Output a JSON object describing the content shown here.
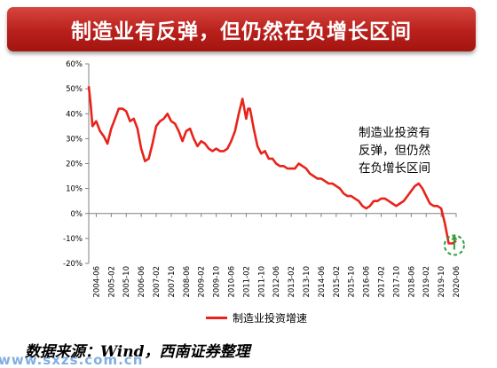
{
  "title": "制造业有反弹，但仍然在负增长区间",
  "annotation": [
    "制造业投资有",
    "反弹，但仍然",
    "在负增长区间"
  ],
  "source": "数据来源：Wind，西南证券整理",
  "watermark": "www.sxzs.com.cn",
  "colors": {
    "banner": "#b9201c",
    "series": "#e8231a",
    "marker_circle": "#2e9e3a",
    "marker_arrow": "#2e9e3a"
  },
  "chart_data": {
    "type": "line",
    "yticks": [
      "60%",
      "50%",
      "40%",
      "30%",
      "20%",
      "10%",
      "0%",
      "-10%",
      "-20%"
    ],
    "xticks": [
      "2004-06",
      "2005-02",
      "2005-10",
      "2006-06",
      "2007-02",
      "2007-10",
      "2008-06",
      "2009-02",
      "2009-10",
      "2010-06",
      "2011-02",
      "2011-10",
      "2012-06",
      "2013-02",
      "2013-10",
      "2014-06",
      "2015-02",
      "2015-10",
      "2016-06",
      "2017-02",
      "2017-10",
      "2018-06",
      "2019-02",
      "2019-10",
      "2020-06"
    ],
    "ylim": [
      -20,
      60
    ],
    "grid": false,
    "legend_position": "bottom",
    "series": [
      {
        "name": "制造业投资增速",
        "x": [
          "2004-02",
          "2004-03",
          "2004-04",
          "2004-06",
          "2004-08",
          "2004-10",
          "2004-12",
          "2005-02",
          "2005-04",
          "2005-06",
          "2005-08",
          "2005-10",
          "2005-12",
          "2006-02",
          "2006-04",
          "2006-06",
          "2006-08",
          "2006-10",
          "2006-12",
          "2007-02",
          "2007-04",
          "2007-06",
          "2007-08",
          "2007-10",
          "2007-12",
          "2008-02",
          "2008-04",
          "2008-06",
          "2008-08",
          "2008-10",
          "2008-12",
          "2009-02",
          "2009-04",
          "2009-06",
          "2009-08",
          "2009-10",
          "2009-12",
          "2010-02",
          "2010-04",
          "2010-06",
          "2010-08",
          "2010-10",
          "2010-12",
          "2011-02",
          "2011-03",
          "2011-04",
          "2011-06",
          "2011-08",
          "2011-10",
          "2011-12",
          "2012-02",
          "2012-04",
          "2012-06",
          "2012-08",
          "2012-10",
          "2012-12",
          "2013-02",
          "2013-04",
          "2013-06",
          "2013-08",
          "2013-10",
          "2013-12",
          "2014-02",
          "2014-04",
          "2014-06",
          "2014-08",
          "2014-10",
          "2014-12",
          "2015-02",
          "2015-04",
          "2015-06",
          "2015-08",
          "2015-10",
          "2015-12",
          "2016-02",
          "2016-04",
          "2016-06",
          "2016-08",
          "2016-10",
          "2016-12",
          "2017-02",
          "2017-04",
          "2017-06",
          "2017-08",
          "2017-10",
          "2017-12",
          "2018-02",
          "2018-04",
          "2018-06",
          "2018-08",
          "2018-10",
          "2018-12",
          "2019-02",
          "2019-04",
          "2019-06",
          "2019-08",
          "2019-10",
          "2019-12",
          "2020-02",
          "2020-04",
          "2020-06"
        ],
        "values": [
          51,
          44,
          35,
          37,
          33,
          31,
          28,
          34,
          38,
          42,
          42,
          41,
          37,
          38,
          34,
          26,
          21,
          22,
          28,
          35,
          37,
          38,
          40,
          37,
          36,
          33,
          29,
          33,
          34,
          30,
          27,
          29,
          28,
          26,
          25,
          26,
          25,
          25,
          26,
          29,
          33,
          40,
          46,
          38,
          42,
          42,
          34,
          27,
          24,
          25,
          22,
          22,
          20,
          19,
          19,
          18,
          18,
          18,
          20,
          19,
          18,
          16,
          15,
          14,
          14,
          13,
          12,
          12,
          11,
          10,
          8,
          7,
          7,
          6,
          5,
          3,
          2,
          3,
          5,
          5,
          6,
          6,
          5,
          4,
          3,
          4,
          5,
          7,
          9,
          11,
          12,
          10,
          7,
          4,
          3,
          3,
          2,
          -4,
          -12,
          -12,
          -11
        ]
      }
    ]
  }
}
